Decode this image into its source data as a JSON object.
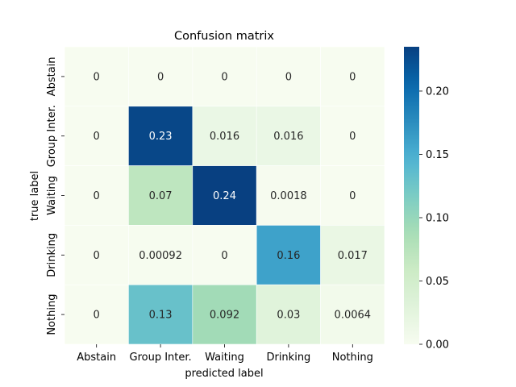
{
  "chart_data": {
    "type": "heatmap",
    "title": "Confusion matrix",
    "xlabel": "predicted label",
    "ylabel": "true label",
    "x_categories": [
      "Abstain",
      "Group Inter.",
      "Waiting",
      "Drinking",
      "Nothing"
    ],
    "y_categories": [
      "Abstain",
      "Group Inter.",
      "Waiting",
      "Drinking",
      "Nothing"
    ],
    "values": [
      [
        0,
        0,
        0,
        0,
        0
      ],
      [
        0,
        0.23,
        0.016,
        0.016,
        0
      ],
      [
        0,
        0.07,
        0.24,
        0.0018,
        0
      ],
      [
        0,
        0.00092,
        0,
        0.16,
        0.017
      ],
      [
        0,
        0.13,
        0.092,
        0.03,
        0.0064
      ]
    ],
    "labels": [
      [
        "0",
        "0",
        "0",
        "0",
        "0"
      ],
      [
        "0",
        "0.23",
        "0.016",
        "0.016",
        "0"
      ],
      [
        "0",
        "0.07",
        "0.24",
        "0.0018",
        "0"
      ],
      [
        "0",
        "0.00092",
        "0",
        "0.16",
        "0.017"
      ],
      [
        "0",
        "0.13",
        "0.092",
        "0.03",
        "0.0064"
      ]
    ],
    "colorbar": {
      "colormap": "GnBu",
      "vmin": 0,
      "vmax": 0.235,
      "ticks": [
        0.0,
        0.05,
        0.1,
        0.15,
        0.2
      ],
      "tick_labels": [
        "0.00",
        "0.05",
        "0.10",
        "0.15",
        "0.20"
      ]
    }
  }
}
